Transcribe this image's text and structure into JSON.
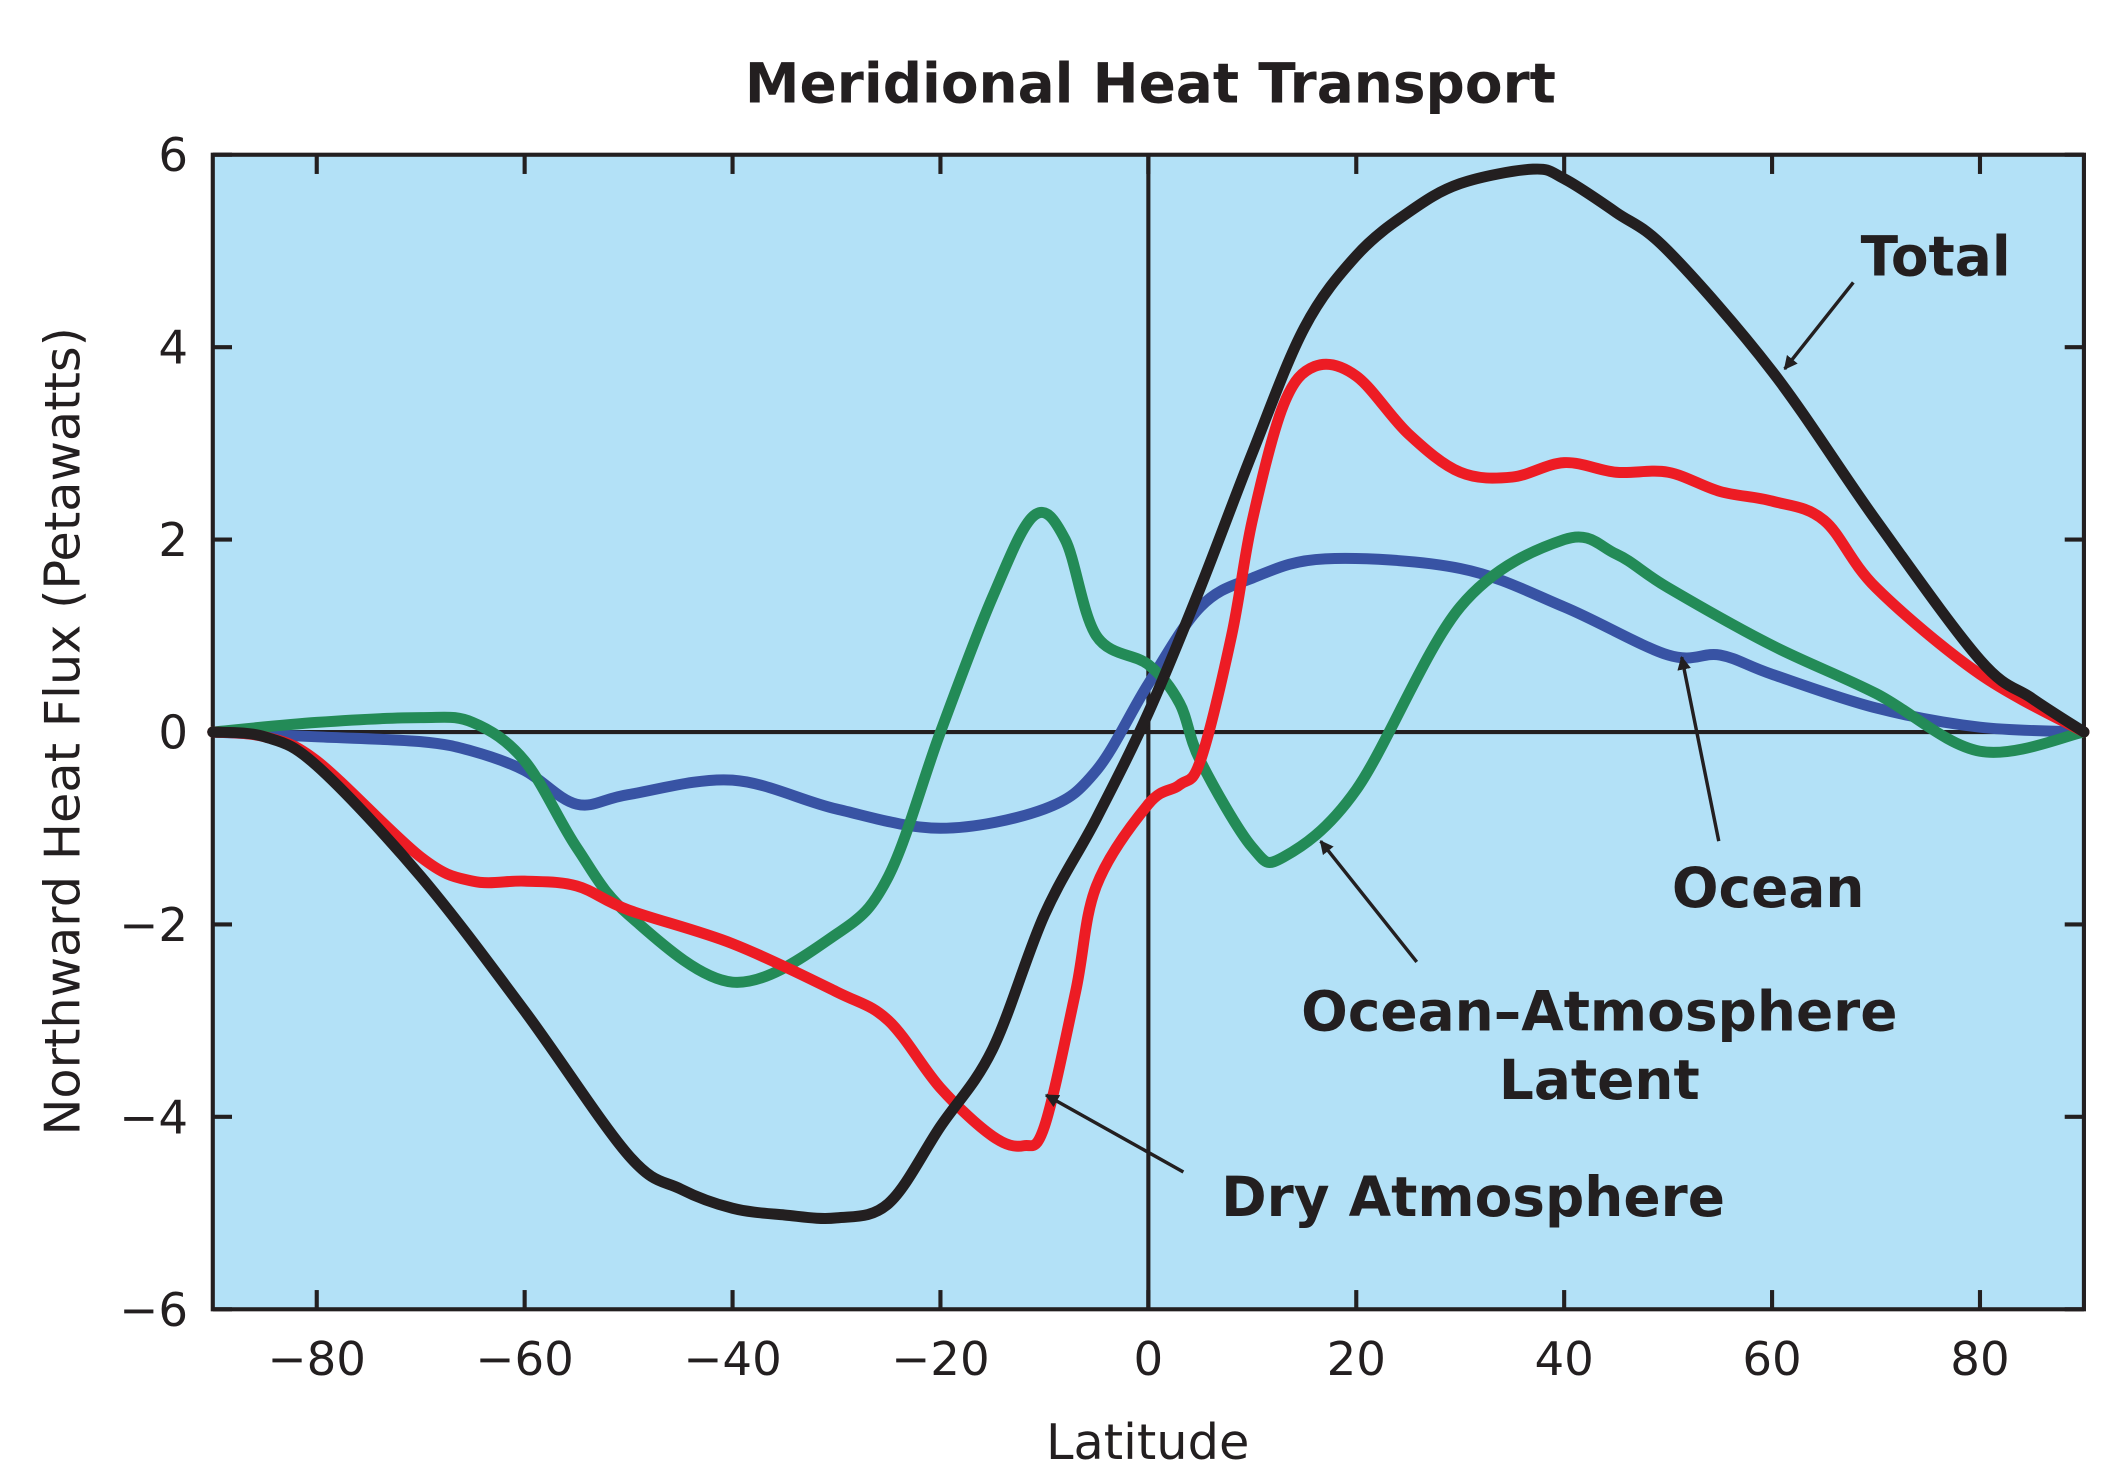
{
  "chart_data": {
    "type": "line",
    "title": "Meridional Heat Transport",
    "xlabel": "Latitude",
    "ylabel": "Northward Heat Flux (Petawatts)",
    "xlim": [
      -90,
      90
    ],
    "ylim": [
      -6,
      6
    ],
    "xticks": [
      -80,
      -60,
      -40,
      -20,
      0,
      20,
      40,
      60,
      80
    ],
    "xtick_labels": [
      "−80",
      "−60",
      "−40",
      "−20",
      "0",
      "20",
      "40",
      "60",
      "80"
    ],
    "yticks": [
      -6,
      -4,
      -2,
      0,
      2,
      4,
      6
    ],
    "ytick_labels": [
      "−6",
      "−4",
      "−2",
      "0",
      "2",
      "4",
      "6"
    ],
    "grid": false,
    "background_color": "#b3e1f7",
    "series": [
      {
        "name": "Total",
        "color": "#231f20",
        "x": [
          -90,
          -85,
          -80,
          -70,
          -60,
          -50,
          -45,
          -40,
          -35,
          -30,
          -25,
          -20,
          -15,
          -10,
          -5,
          0,
          5,
          10,
          15,
          20,
          25,
          30,
          37,
          40,
          45,
          50,
          60,
          70,
          80,
          85,
          90
        ],
        "y": [
          0,
          -0.05,
          -0.35,
          -1.5,
          -2.9,
          -4.4,
          -4.75,
          -4.95,
          -5.02,
          -5.05,
          -4.9,
          -4.1,
          -3.3,
          -1.9,
          -0.9,
          0.2,
          1.5,
          2.9,
          4.2,
          4.95,
          5.4,
          5.7,
          5.85,
          5.75,
          5.4,
          5.0,
          3.75,
          2.2,
          0.75,
          0.35,
          0
        ]
      },
      {
        "name": "Dry Atmosphere",
        "color": "#ed1c24",
        "x": [
          -90,
          -85,
          -80,
          -70,
          -65,
          -60,
          -55,
          -50,
          -40,
          -30,
          -25,
          -20,
          -15,
          -12,
          -10,
          -7,
          -5,
          0,
          3,
          5,
          8,
          10,
          13,
          16,
          20,
          25,
          30,
          35,
          40,
          45,
          50,
          55,
          60,
          65,
          70,
          80,
          90
        ],
        "y": [
          0,
          -0.05,
          -0.3,
          -1.3,
          -1.55,
          -1.55,
          -1.6,
          -1.85,
          -2.2,
          -2.7,
          -3.0,
          -3.7,
          -4.2,
          -4.3,
          -4.1,
          -2.7,
          -1.6,
          -0.75,
          -0.55,
          -0.3,
          1.0,
          2.2,
          3.4,
          3.8,
          3.7,
          3.1,
          2.7,
          2.65,
          2.8,
          2.7,
          2.7,
          2.5,
          2.4,
          2.2,
          1.5,
          0.6,
          0
        ]
      },
      {
        "name": "Ocean–Atmosphere Latent",
        "color": "#238b57",
        "x": [
          -90,
          -80,
          -70,
          -65,
          -60,
          -55,
          -50,
          -40,
          -30,
          -25,
          -20,
          -15,
          -11,
          -8,
          -5,
          0,
          3,
          5,
          10,
          13,
          20,
          30,
          40,
          45,
          50,
          60,
          70,
          80,
          90
        ],
        "y": [
          0,
          0.1,
          0.15,
          0.1,
          -0.3,
          -1.2,
          -1.9,
          -2.6,
          -2.1,
          -1.5,
          0,
          1.4,
          2.25,
          2.0,
          1.0,
          0.7,
          0.3,
          -0.3,
          -1.2,
          -1.3,
          -0.6,
          1.3,
          2.0,
          1.85,
          1.5,
          0.9,
          0.4,
          -0.2,
          0
        ]
      },
      {
        "name": "Ocean",
        "color": "#3853a4",
        "x": [
          -90,
          -80,
          -70,
          -65,
          -60,
          -55,
          -50,
          -40,
          -30,
          -20,
          -10,
          -5,
          0,
          5,
          10,
          17,
          30,
          40,
          50,
          55,
          60,
          70,
          80,
          90
        ],
        "y": [
          0,
          -0.05,
          -0.1,
          -0.2,
          -0.4,
          -0.75,
          -0.65,
          -0.5,
          -0.8,
          -1.0,
          -0.8,
          -0.4,
          0.5,
          1.3,
          1.6,
          1.8,
          1.7,
          1.3,
          0.8,
          0.8,
          0.6,
          0.25,
          0.05,
          0
        ]
      }
    ],
    "annotations": [
      "Total",
      "Ocean",
      "Ocean–Atmosphere",
      "Latent",
      "Dry Atmosphere"
    ]
  }
}
